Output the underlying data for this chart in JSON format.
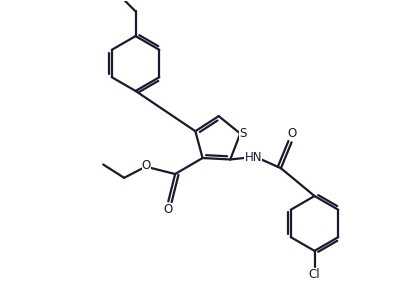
{
  "bg_color": "#ffffff",
  "line_color": "#1a1a2e",
  "bond_lw": 1.6,
  "figsize": [
    4.12,
    3.06
  ],
  "dpi": 100,
  "xlim": [
    0,
    10
  ],
  "ylim": [
    0,
    8
  ]
}
